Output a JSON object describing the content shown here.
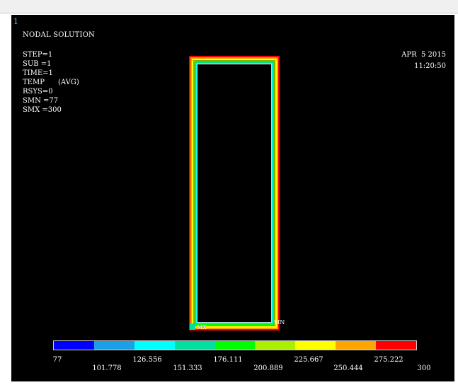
{
  "window_number": "1",
  "title": "NODAL SOLUTION",
  "info": [
    "STEP=1",
    "SUB =1",
    "TIME=1",
    "TEMP      (AVG)",
    "RSYS=0",
    "SMN =77",
    "SMX =300"
  ],
  "date": "APR  5 2015",
  "time": "11:20:50",
  "markers": {
    "min": "MN",
    "max": "MX"
  },
  "legend": {
    "colors": [
      "#0000ff",
      "#1ba0e8",
      "#00ffff",
      "#00e0a0",
      "#00ff00",
      "#a8f000",
      "#ffff00",
      "#ffa500",
      "#ff0000"
    ],
    "top_labels": [
      "77",
      "126.556",
      "176.111",
      "225.667",
      "275.222"
    ],
    "bottom_labels": [
      "101.778",
      "151.333",
      "200.889",
      "250.444",
      "300"
    ]
  }
}
